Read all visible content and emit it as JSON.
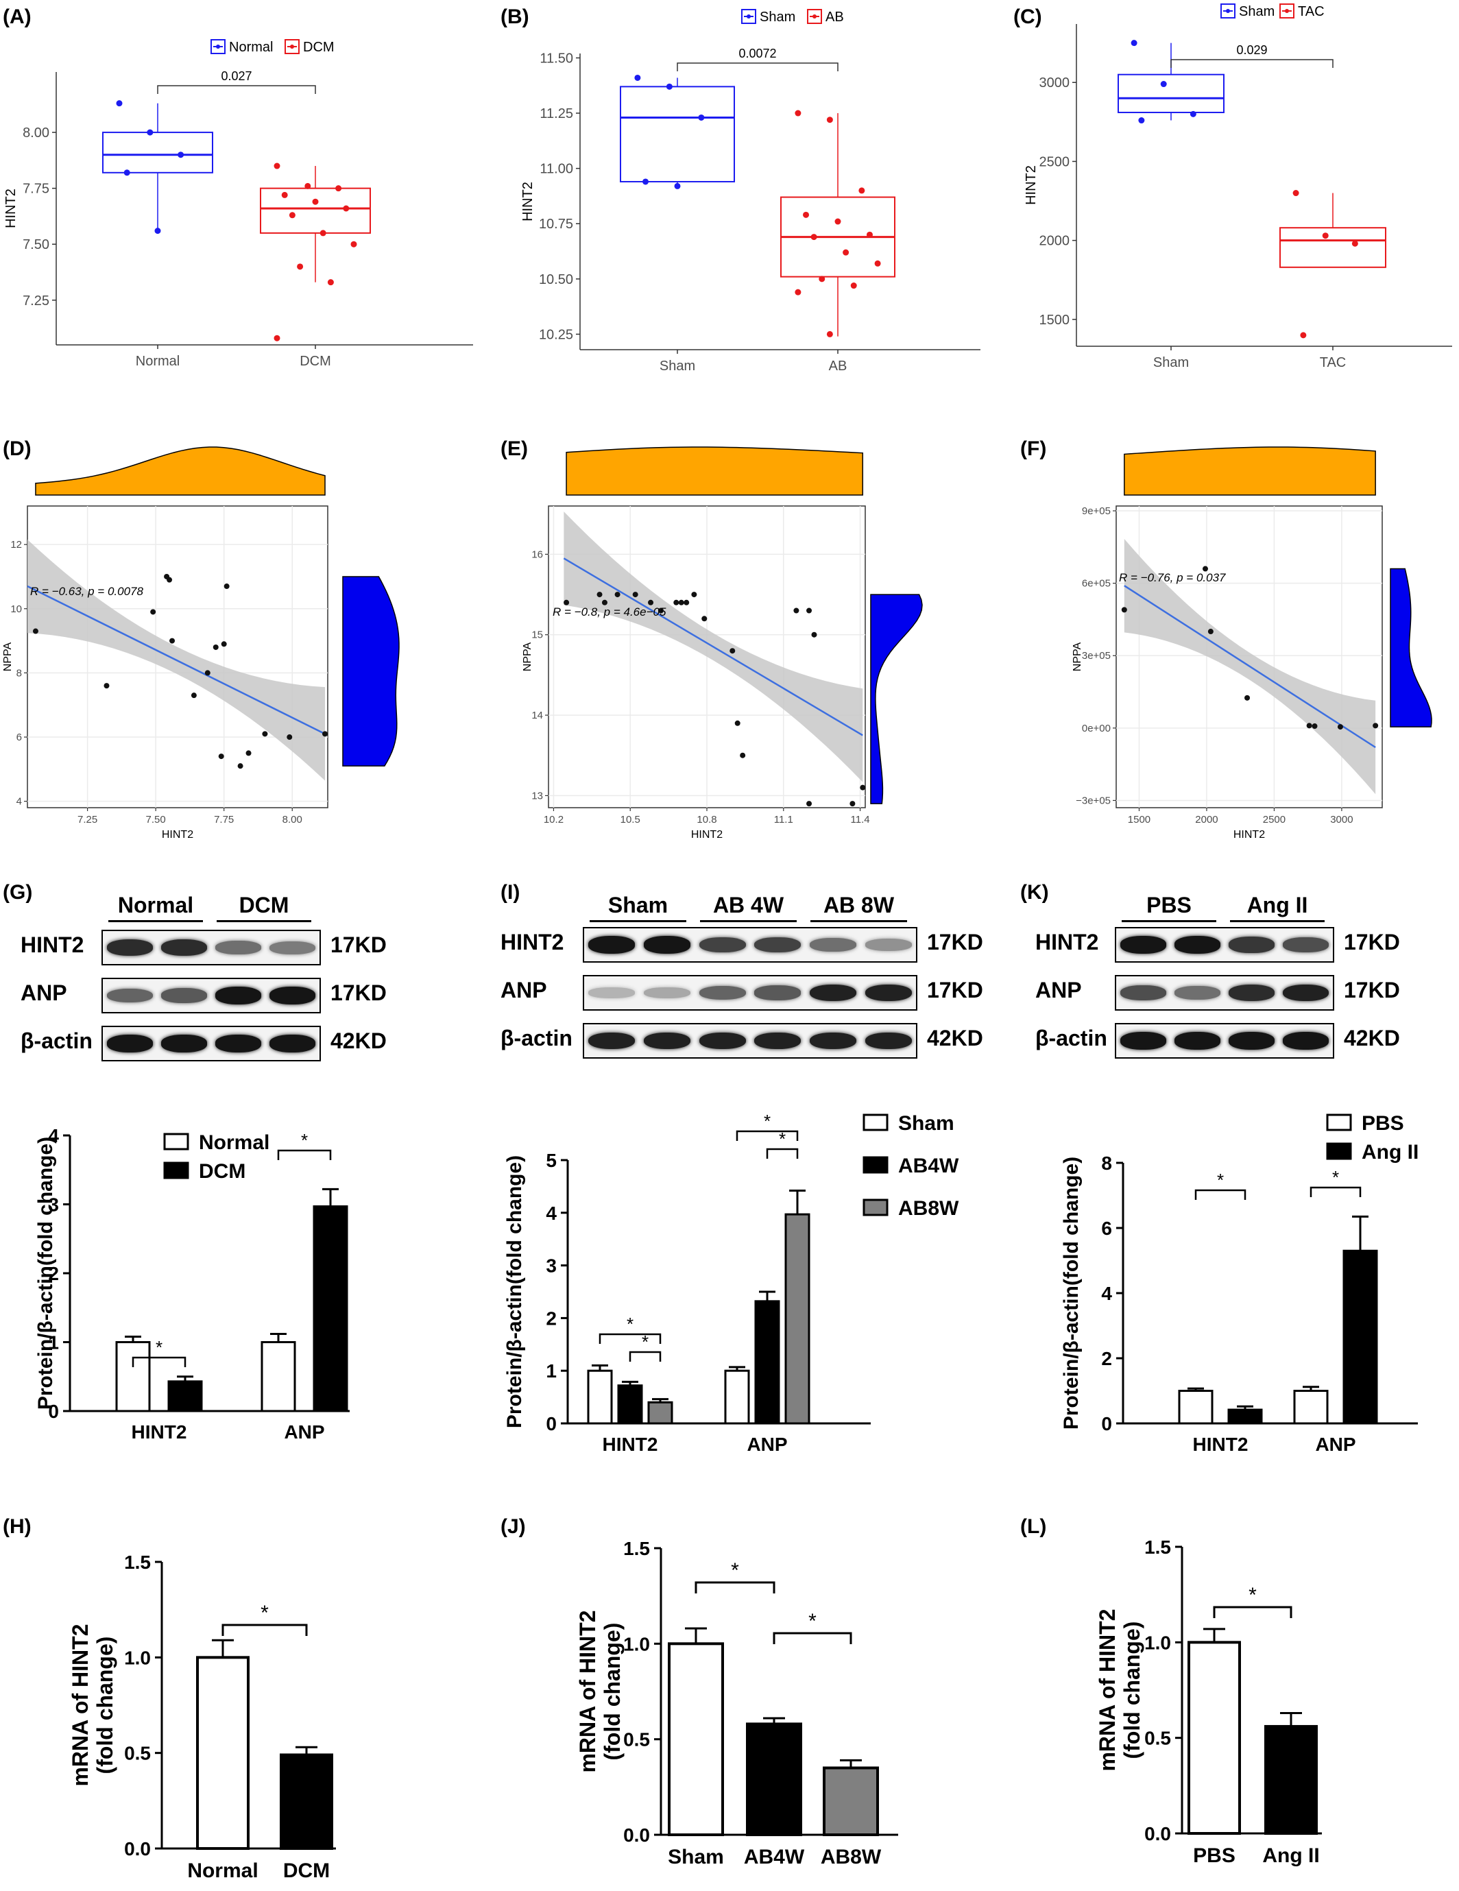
{
  "panels": {
    "A": {
      "label": "(A)"
    },
    "B": {
      "label": "(B)"
    },
    "C": {
      "label": "(C)"
    },
    "D": {
      "label": "(D)"
    },
    "E": {
      "label": "(E)"
    },
    "F": {
      "label": "(F)"
    },
    "G": {
      "label": "(G)"
    },
    "H": {
      "label": "(H)"
    },
    "I": {
      "label": "(I)"
    },
    "J": {
      "label": "(J)"
    },
    "K": {
      "label": "(K)"
    },
    "L": {
      "label": "(L)"
    }
  },
  "colors": {
    "blue": "#1c1cf0",
    "red": "#e8191c",
    "orange": "#ffa500",
    "density_blue": "#0000ee",
    "reg_line": "#3d6fe0",
    "ci": "#c8c8c8",
    "gray_bar": "#808080",
    "black": "#000000"
  },
  "western_blots": {
    "G": {
      "groups": [
        "Normal",
        "DCM"
      ],
      "rows": [
        {
          "name": "HINT2",
          "kd": "17KD",
          "intensity": [
            0.85,
            0.85,
            0.55,
            0.5
          ]
        },
        {
          "name": "ANP",
          "kd": "17KD",
          "intensity": [
            0.6,
            0.65,
            0.95,
            0.95
          ]
        },
        {
          "name": "β-actin",
          "kd": "42KD",
          "intensity": [
            0.95,
            0.95,
            0.95,
            0.95
          ]
        }
      ]
    },
    "I": {
      "groups": [
        "Sham",
        "AB 4W",
        "AB 8W"
      ],
      "rows": [
        {
          "name": "HINT2",
          "kd": "17KD",
          "intensity": [
            0.95,
            0.95,
            0.75,
            0.75,
            0.55,
            0.4
          ]
        },
        {
          "name": "ANP",
          "kd": "17KD",
          "intensity": [
            0.25,
            0.3,
            0.6,
            0.65,
            0.9,
            0.9
          ]
        },
        {
          "name": "β-actin",
          "kd": "42KD",
          "intensity": [
            0.9,
            0.9,
            0.9,
            0.9,
            0.9,
            0.9
          ]
        }
      ]
    },
    "K": {
      "groups": [
        "PBS",
        "Ang II"
      ],
      "rows": [
        {
          "name": "HINT2",
          "kd": "17KD",
          "intensity": [
            0.95,
            0.95,
            0.8,
            0.7
          ]
        },
        {
          "name": "ANP",
          "kd": "17KD",
          "intensity": [
            0.7,
            0.55,
            0.85,
            0.9
          ]
        },
        {
          "name": "β-actin",
          "kd": "42KD",
          "intensity": [
            0.95,
            0.95,
            0.95,
            0.95
          ]
        }
      ]
    }
  },
  "chart_data": [
    {
      "id": "A",
      "type": "box",
      "legend": [
        "Normal",
        "DCM"
      ],
      "categories": [
        "Normal",
        "DCM"
      ],
      "ylabel": "HINT2",
      "xlabel": "",
      "yticks": [
        "7.25",
        "7.50",
        "7.75",
        "8.00"
      ],
      "ylim": [
        7.05,
        8.27
      ],
      "boxes": [
        {
          "q1": 7.82,
          "median": 7.9,
          "q3": 8.0,
          "wlow": 7.57,
          "whigh": 8.13,
          "points": [
            8.13,
            8.0,
            7.9,
            7.82,
            7.56
          ]
        },
        {
          "q1": 7.55,
          "median": 7.66,
          "q3": 7.75,
          "wlow": 7.33,
          "whigh": 7.85,
          "points": [
            7.85,
            7.76,
            7.75,
            7.72,
            7.69,
            7.66,
            7.63,
            7.55,
            7.5,
            7.4,
            7.33,
            7.08
          ]
        }
      ],
      "pvalue": "0.027"
    },
    {
      "id": "B",
      "type": "box",
      "legend": [
        "Sham",
        "AB"
      ],
      "categories": [
        "Sham",
        "AB"
      ],
      "ylabel": "HINT2",
      "xlabel": "",
      "yticks": [
        "10.25",
        "10.50",
        "10.75",
        "11.00",
        "11.25",
        "11.50"
      ],
      "ylim": [
        10.18,
        11.52
      ],
      "boxes": [
        {
          "q1": 10.94,
          "median": 11.23,
          "q3": 11.37,
          "wlow": 10.92,
          "whigh": 11.41,
          "points": [
            11.41,
            11.37,
            11.23,
            10.94,
            10.92
          ]
        },
        {
          "q1": 10.51,
          "median": 10.69,
          "q3": 10.87,
          "wlow": 10.24,
          "whigh": 11.25,
          "points": [
            11.25,
            11.22,
            10.9,
            10.79,
            10.76,
            10.7,
            10.69,
            10.62,
            10.57,
            10.5,
            10.47,
            10.44,
            10.25
          ]
        }
      ],
      "pvalue": "0.0072"
    },
    {
      "id": "C",
      "type": "box",
      "legend": [
        "Sham",
        "TAC"
      ],
      "categories": [
        "Sham",
        "TAC"
      ],
      "ylabel": "HINT2",
      "xlabel": "",
      "yticks": [
        "1500",
        "2000",
        "2500",
        "3000"
      ],
      "ylim": [
        1330,
        3370
      ],
      "boxes": [
        {
          "q1": 2810,
          "median": 2900,
          "q3": 3050,
          "wlow": 2760,
          "whigh": 3250,
          "points": [
            3250,
            2990,
            2800,
            2760
          ]
        },
        {
          "q1": 1830,
          "median": 2000,
          "q3": 2080,
          "wlow": 1830,
          "whigh": 2300,
          "points": [
            2300,
            2030,
            1980,
            1400
          ]
        }
      ],
      "pvalue": "0.029"
    },
    {
      "id": "D",
      "type": "scatter",
      "xlabel": "HINT2",
      "ylabel": "NPPA",
      "xticks": [
        "7.25",
        "7.50",
        "7.75",
        "8.00"
      ],
      "xlim": [
        7.03,
        8.13
      ],
      "yticks": [
        "4",
        "6",
        "8",
        "10",
        "12"
      ],
      "ylim": [
        3.8,
        13.2
      ],
      "annotation": "R = −0.63, p = 0.0078",
      "points": [
        [
          7.06,
          9.3
        ],
        [
          7.32,
          7.6
        ],
        [
          7.49,
          9.9
        ],
        [
          7.54,
          11.0
        ],
        [
          7.55,
          10.9
        ],
        [
          7.56,
          9.0
        ],
        [
          7.64,
          7.3
        ],
        [
          7.69,
          8.0
        ],
        [
          7.72,
          8.8
        ],
        [
          7.74,
          5.4
        ],
        [
          7.75,
          8.9
        ],
        [
          7.76,
          10.7
        ],
        [
          7.81,
          5.1
        ],
        [
          7.84,
          5.5
        ],
        [
          7.9,
          6.1
        ],
        [
          7.99,
          6.0
        ],
        [
          8.12,
          6.1
        ]
      ],
      "line": [
        [
          7.03,
          10.7
        ],
        [
          8.12,
          6.1
        ]
      ]
    },
    {
      "id": "E",
      "type": "scatter",
      "xlabel": "HINT2",
      "ylabel": "NPPA",
      "xticks": [
        "10.2",
        "10.5",
        "10.8",
        "11.1",
        "11.4"
      ],
      "xlim": [
        10.18,
        11.42
      ],
      "yticks": [
        "13",
        "14",
        "15",
        "16"
      ],
      "ylim": [
        12.85,
        16.6
      ],
      "annotation": "R = −0.8, p = 4.6e−05",
      "points": [
        [
          10.25,
          15.4
        ],
        [
          10.38,
          15.5
        ],
        [
          10.4,
          15.4
        ],
        [
          10.45,
          15.5
        ],
        [
          10.52,
          15.5
        ],
        [
          10.58,
          15.4
        ],
        [
          10.62,
          15.3
        ],
        [
          10.68,
          15.4
        ],
        [
          10.7,
          15.4
        ],
        [
          10.72,
          15.4
        ],
        [
          10.75,
          15.5
        ],
        [
          10.79,
          15.2
        ],
        [
          10.9,
          14.8
        ],
        [
          10.92,
          13.9
        ],
        [
          10.94,
          13.5
        ],
        [
          11.15,
          15.3
        ],
        [
          11.2,
          15.3
        ],
        [
          11.22,
          15.0
        ],
        [
          11.2,
          12.9
        ],
        [
          11.37,
          12.9
        ],
        [
          11.41,
          13.1
        ]
      ],
      "line": [
        [
          10.24,
          15.95
        ],
        [
          11.41,
          13.75
        ]
      ]
    },
    {
      "id": "F",
      "type": "scatter",
      "xlabel": "HINT2",
      "ylabel": "NPPA",
      "xticks": [
        "1500",
        "2000",
        "2500",
        "3000"
      ],
      "xlim": [
        1330,
        3300
      ],
      "yticks": [
        "−3e+05",
        "0e+00",
        "3e+05",
        "6e+05",
        "9e+05"
      ],
      "ylim": [
        -330000,
        920000
      ],
      "annotation": "R = −0.76, p = 0.037",
      "points": [
        [
          1390,
          490000
        ],
        [
          1990,
          660000
        ],
        [
          2030,
          400000
        ],
        [
          2300,
          125000
        ],
        [
          2760,
          10000
        ],
        [
          2800,
          8000
        ],
        [
          2990,
          5000
        ],
        [
          3250,
          10000
        ]
      ],
      "line": [
        [
          1390,
          590000
        ],
        [
          3250,
          -80000
        ]
      ]
    },
    {
      "id": "G",
      "type": "bar",
      "categories": [
        "HINT2",
        "ANP"
      ],
      "series": [
        {
          "name": "Normal",
          "values": [
            1.0,
            1.0
          ],
          "errors": [
            0.08,
            0.12
          ]
        },
        {
          "name": "DCM",
          "values": [
            0.43,
            2.97
          ],
          "errors": [
            0.07,
            0.25
          ]
        }
      ],
      "ylabel": "Protein/β-actin(fold change)",
      "yticks": [
        "0",
        "1",
        "2",
        "3",
        "4"
      ],
      "ylim": [
        0,
        4
      ],
      "sig": "*"
    },
    {
      "id": "I",
      "type": "bar",
      "categories": [
        "HINT2",
        "ANP"
      ],
      "series": [
        {
          "name": "Sham",
          "values": [
            1.0,
            1.0
          ],
          "errors": [
            0.1,
            0.07
          ]
        },
        {
          "name": "AB4W",
          "values": [
            0.72,
            2.32
          ],
          "errors": [
            0.07,
            0.18
          ]
        },
        {
          "name": "AB8W",
          "values": [
            0.4,
            3.97
          ],
          "errors": [
            0.06,
            0.45
          ]
        }
      ],
      "ylabel": "Protein/β-actin(fold change)",
      "yticks": [
        "0",
        "1",
        "2",
        "3",
        "4",
        "5"
      ],
      "ylim": [
        0,
        5
      ],
      "sig": "*"
    },
    {
      "id": "K",
      "type": "bar",
      "categories": [
        "HINT2",
        "ANP"
      ],
      "series": [
        {
          "name": "PBS",
          "values": [
            1.0,
            1.0
          ],
          "errors": [
            0.07,
            0.12
          ]
        },
        {
          "name": "Ang II",
          "values": [
            0.42,
            5.3
          ],
          "errors": [
            0.1,
            1.05
          ]
        }
      ],
      "ylabel": "Protein/β-actin(fold change)",
      "yticks": [
        "0",
        "2",
        "4",
        "6",
        "8"
      ],
      "ylim": [
        0,
        8
      ],
      "sig": "*"
    },
    {
      "id": "H",
      "type": "bar",
      "categories": [
        "Normal",
        "DCM"
      ],
      "values": [
        1.0,
        0.49
      ],
      "errors": [
        0.09,
        0.04
      ],
      "fills": [
        "white",
        "black"
      ],
      "ylabel_lines": [
        "mRNA of HINT2",
        "(fold change)"
      ],
      "yticks": [
        "0.0",
        "0.5",
        "1.0",
        "1.5"
      ],
      "ylim": [
        0,
        1.5
      ],
      "sig": "*"
    },
    {
      "id": "J",
      "type": "bar",
      "categories": [
        "Sham",
        "AB4W",
        "AB8W"
      ],
      "values": [
        1.0,
        0.58,
        0.35
      ],
      "errors": [
        0.08,
        0.03,
        0.04
      ],
      "fills": [
        "white",
        "black",
        "gray"
      ],
      "ylabel_lines": [
        "mRNA of HINT2",
        "(fold change)"
      ],
      "yticks": [
        "0.0",
        "0.5",
        "1.0",
        "1.5"
      ],
      "ylim": [
        0,
        1.5
      ],
      "sig": "*"
    },
    {
      "id": "L",
      "type": "bar",
      "categories": [
        "PBS",
        "Ang II"
      ],
      "values": [
        1.0,
        0.56
      ],
      "errors": [
        0.07,
        0.07
      ],
      "fills": [
        "white",
        "black"
      ],
      "ylabel_lines": [
        "mRNA of HINT2",
        "(fold change)"
      ],
      "yticks": [
        "0.0",
        "0.5",
        "1.0",
        "1.5"
      ],
      "ylim": [
        0,
        1.5
      ],
      "sig": "*"
    }
  ]
}
